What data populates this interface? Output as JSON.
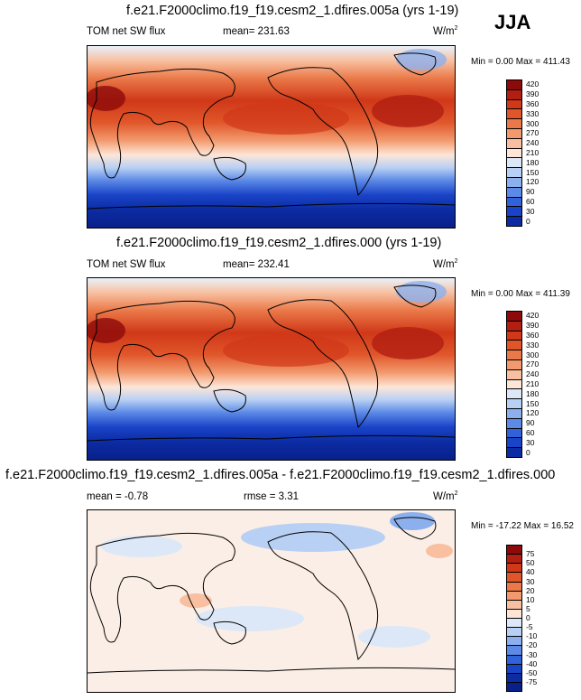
{
  "season": "JJA",
  "chart_data": [
    {
      "type": "heatmap",
      "title": "f.e21.F2000climo.f19_f19.cesm2_1.dfires.005a (yrs 1-19)",
      "left_label": "TOM net SW flux",
      "mean_text": "mean= 231.63",
      "units": "W/m",
      "units_sup": "2",
      "minmax_text": "Min =   0.00 Max = 411.43",
      "min": 0.0,
      "max": 411.43,
      "colorbar_levels": [
        "420",
        "390",
        "360",
        "330",
        "300",
        "270",
        "240",
        "210",
        "180",
        "150",
        "120",
        "90",
        "60",
        "30",
        "0"
      ],
      "colorbar_colors": [
        "#8c0a0a",
        "#b21e12",
        "#d03818",
        "#e0562a",
        "#ea7848",
        "#f29a6e",
        "#f8c0a0",
        "#fde6d8",
        "#dce8f8",
        "#b8d0f4",
        "#8cb0ee",
        "#5c8ae6",
        "#3262da",
        "#1a44c8",
        "#0c2ca4"
      ]
    },
    {
      "type": "heatmap",
      "title": "f.e21.F2000climo.f19_f19.cesm2_1.dfires.000 (yrs 1-19)",
      "left_label": "TOM net SW flux",
      "mean_text": "mean= 232.41",
      "units": "W/m",
      "units_sup": "2",
      "minmax_text": "Min =   0.00 Max = 411.39",
      "min": 0.0,
      "max": 411.39,
      "colorbar_levels": [
        "420",
        "390",
        "360",
        "330",
        "300",
        "270",
        "240",
        "210",
        "180",
        "150",
        "120",
        "90",
        "60",
        "30",
        "0"
      ],
      "colorbar_colors": [
        "#8c0a0a",
        "#b21e12",
        "#d03818",
        "#e0562a",
        "#ea7848",
        "#f29a6e",
        "#f8c0a0",
        "#fde6d8",
        "#dce8f8",
        "#b8d0f4",
        "#8cb0ee",
        "#5c8ae6",
        "#3262da",
        "#1a44c8",
        "#0c2ca4"
      ]
    },
    {
      "type": "heatmap",
      "title": "f.e21.F2000climo.f19_f19.cesm2_1.dfires.005a - f.e21.F2000climo.f19_f19.cesm2_1.dfires.000",
      "left_label": "mean =  -0.78",
      "mean_text": "rmse =   3.31",
      "units": "W/m",
      "units_sup": "2",
      "minmax_text": "Min = -17.22 Max =  16.52",
      "min": -17.22,
      "max": 16.52,
      "colorbar_levels": [
        "75",
        "50",
        "40",
        "30",
        "20",
        "10",
        "5",
        "0",
        "-5",
        "-10",
        "-20",
        "-30",
        "-40",
        "-50",
        "-75"
      ],
      "colorbar_colors": [
        "#8c0a0a",
        "#b21e12",
        "#d03818",
        "#e0562a",
        "#ea7848",
        "#f29a6e",
        "#f8c0a0",
        "#fde6d8",
        "#dce8f8",
        "#b8d0f4",
        "#8cb0ee",
        "#5c8ae6",
        "#3262da",
        "#1a44c8",
        "#0c2ca4",
        "#08208a"
      ]
    }
  ]
}
